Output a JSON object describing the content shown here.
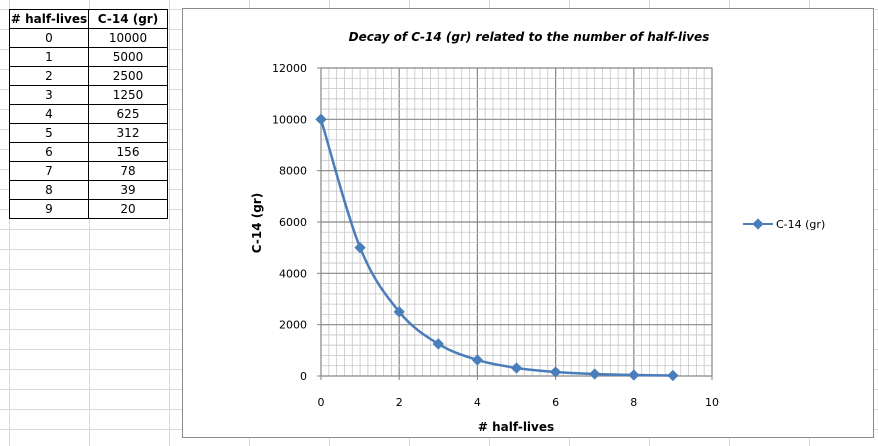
{
  "table": {
    "headers": [
      "# half-lives",
      "C-14 (gr)"
    ],
    "rows": [
      [
        "0",
        "10000"
      ],
      [
        "1",
        "5000"
      ],
      [
        "2",
        "2500"
      ],
      [
        "3",
        "1250"
      ],
      [
        "4",
        "625"
      ],
      [
        "5",
        "312"
      ],
      [
        "6",
        "156"
      ],
      [
        "7",
        "78"
      ],
      [
        "8",
        "39"
      ],
      [
        "9",
        "20"
      ]
    ]
  },
  "chart_data": {
    "type": "scatter",
    "title": "Decay of C-14 (gr) related to the number  of half-lives",
    "xlabel": "# half-lives",
    "ylabel": "C-14 (gr)",
    "xlim": [
      0,
      10
    ],
    "ylim": [
      0,
      12000
    ],
    "x_ticks": [
      "0",
      "2",
      "4",
      "6",
      "8",
      "10"
    ],
    "y_ticks": [
      "0",
      "2000",
      "4000",
      "6000",
      "8000",
      "10000",
      "12000"
    ],
    "grid": true,
    "legend": "right",
    "series": [
      {
        "name": "C-14 (gr)",
        "color": "#4a7ebb",
        "x": [
          0,
          1,
          2,
          3,
          4,
          5,
          6,
          7,
          8,
          9
        ],
        "y": [
          10000,
          5000,
          2500,
          1250,
          625,
          312,
          156,
          78,
          39,
          20
        ]
      }
    ]
  }
}
